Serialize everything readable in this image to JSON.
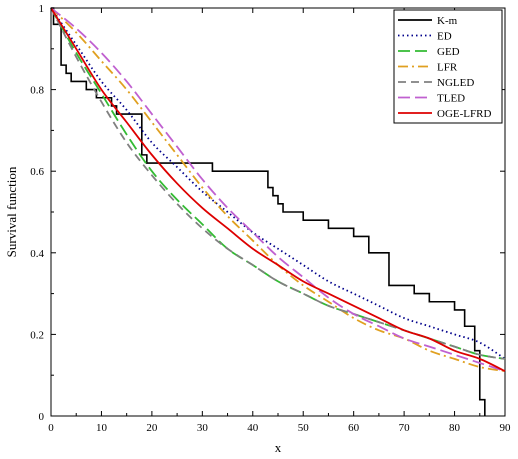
{
  "chart_data": {
    "type": "line",
    "xlabel": "x",
    "ylabel": "Survival function",
    "xlim": [
      0,
      90
    ],
    "ylim": [
      0,
      1
    ],
    "x_ticks": [
      0,
      10,
      20,
      30,
      40,
      50,
      60,
      70,
      80,
      90
    ],
    "y_ticks": [
      0,
      0.2,
      0.4,
      0.6,
      0.8,
      1
    ],
    "y_tick_labels": [
      "0",
      "0.2",
      "0.4",
      "0.6",
      "0.8",
      "1"
    ],
    "legend_position": "top-right",
    "grid": false,
    "x": [
      0,
      5,
      10,
      15,
      20,
      25,
      30,
      35,
      40,
      45,
      50,
      55,
      60,
      65,
      70,
      75,
      80,
      85,
      90
    ],
    "km_steps": [
      [
        0,
        1.0
      ],
      [
        0.5,
        0.96
      ],
      [
        2,
        0.86
      ],
      [
        3,
        0.84
      ],
      [
        4,
        0.82
      ],
      [
        7,
        0.8
      ],
      [
        9,
        0.78
      ],
      [
        12,
        0.76
      ],
      [
        13,
        0.74
      ],
      [
        18,
        0.64
      ],
      [
        19,
        0.62
      ],
      [
        32,
        0.6
      ],
      [
        43,
        0.56
      ],
      [
        44,
        0.54
      ],
      [
        45,
        0.52
      ],
      [
        46,
        0.5
      ],
      [
        50,
        0.48
      ],
      [
        55,
        0.46
      ],
      [
        60,
        0.44
      ],
      [
        63,
        0.4
      ],
      [
        67,
        0.32
      ],
      [
        72,
        0.3
      ],
      [
        75,
        0.28
      ],
      [
        80,
        0.26
      ],
      [
        82,
        0.22
      ],
      [
        84,
        0.16
      ],
      [
        85,
        0.04
      ],
      [
        86,
        0.0
      ]
    ],
    "series": [
      {
        "name": "K-m",
        "color": "#000000",
        "dash": "solid",
        "kind": "step"
      },
      {
        "name": "ED",
        "color": "#00008b",
        "dash": "dot",
        "values": [
          1.0,
          0.91,
          0.82,
          0.75,
          0.67,
          0.61,
          0.55,
          0.5,
          0.45,
          0.41,
          0.37,
          0.33,
          0.3,
          0.27,
          0.24,
          0.22,
          0.2,
          0.18,
          0.14
        ]
      },
      {
        "name": "GED",
        "color": "#33bb33",
        "dash": "longdash",
        "values": [
          1.0,
          0.89,
          0.79,
          0.69,
          0.6,
          0.53,
          0.47,
          0.41,
          0.37,
          0.33,
          0.3,
          0.27,
          0.25,
          0.23,
          0.21,
          0.19,
          0.17,
          0.15,
          0.14
        ]
      },
      {
        "name": "LFR",
        "color": "#e0a020",
        "dash": "dashdot",
        "values": [
          1.0,
          0.94,
          0.87,
          0.8,
          0.72,
          0.64,
          0.56,
          0.49,
          0.43,
          0.37,
          0.32,
          0.28,
          0.24,
          0.21,
          0.19,
          0.16,
          0.14,
          0.12,
          0.11
        ]
      },
      {
        "name": "NGLED",
        "color": "#808080",
        "dash": "dash",
        "values": [
          1.0,
          0.88,
          0.77,
          0.67,
          0.59,
          0.52,
          0.46,
          0.41,
          0.37,
          0.33,
          0.3,
          0.27,
          0.25,
          0.23,
          0.21,
          0.19,
          0.17,
          0.15,
          0.14
        ]
      },
      {
        "name": "TLED",
        "color": "#c060d0",
        "dash": "longdash",
        "values": [
          1.0,
          0.95,
          0.89,
          0.82,
          0.74,
          0.66,
          0.58,
          0.51,
          0.45,
          0.39,
          0.34,
          0.29,
          0.25,
          0.22,
          0.19,
          0.17,
          0.15,
          0.13,
          0.11
        ]
      },
      {
        "name": "OGE-LFRD",
        "color": "#dd0000",
        "dash": "solid",
        "values": [
          1.0,
          0.9,
          0.8,
          0.72,
          0.64,
          0.57,
          0.51,
          0.46,
          0.41,
          0.37,
          0.33,
          0.3,
          0.27,
          0.24,
          0.21,
          0.19,
          0.16,
          0.14,
          0.11
        ]
      }
    ]
  }
}
